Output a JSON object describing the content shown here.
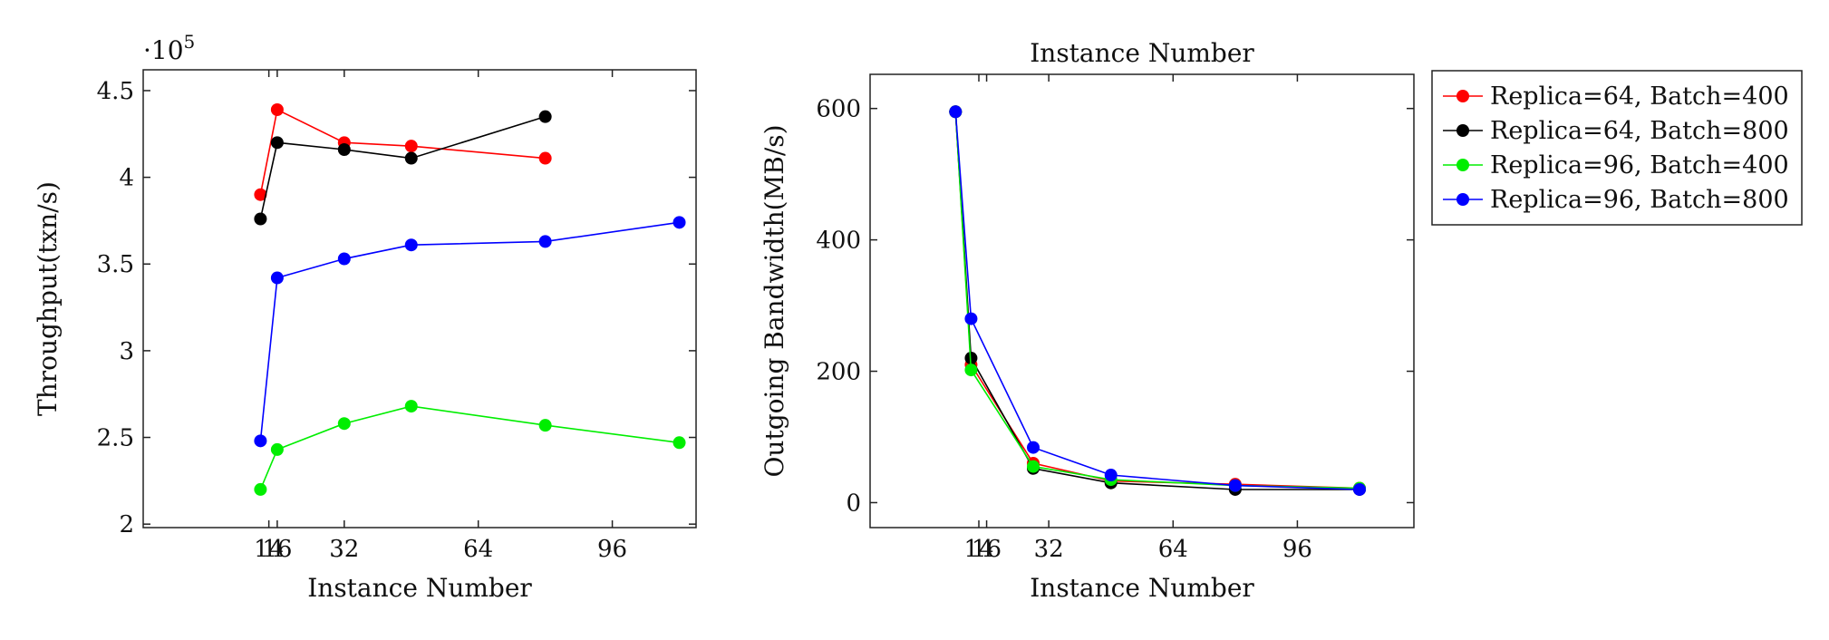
{
  "colors": {
    "r64b400": "#ff0000",
    "r64b800": "#000000",
    "r96b400": "#00ee00",
    "r96b800": "#0000ff"
  },
  "legend": {
    "placement": "outside-right",
    "entries": [
      {
        "label": "Replica=64, Batch=400",
        "color": "#ff0000"
      },
      {
        "label": "Replica=64, Batch=800",
        "color": "#000000"
      },
      {
        "label": "Replica=96, Batch=400",
        "color": "#00ee00"
      },
      {
        "label": "Replica=96, Batch=800",
        "color": "#0000ff"
      }
    ]
  },
  "chart_data": [
    {
      "type": "line",
      "title": "",
      "xlabel": "Instance Number",
      "ylabel": "Throughput(txn/s)",
      "y_multiplier": "·10",
      "y_multiplier_exp": "5",
      "x_ticks": [
        14,
        16,
        32,
        64,
        96
      ],
      "x_tick_labels": [
        "14",
        "16",
        "32",
        "64",
        "96"
      ],
      "y_ticks": [
        2,
        2.5,
        3,
        3.5,
        4,
        4.5
      ],
      "y_tick_labels": [
        "2",
        "2.5",
        "3",
        "3.5",
        "4",
        "4.5"
      ],
      "xlim": [
        -16,
        116
      ],
      "ylim": [
        1.98,
        4.62
      ],
      "grid": false,
      "series": [
        {
          "name": "Replica=64, Batch=400",
          "color": "#ff0000",
          "x": [
            12,
            16,
            32,
            48,
            80
          ],
          "y": [
            3.9,
            4.39,
            4.2,
            4.18,
            4.11
          ]
        },
        {
          "name": "Replica=64, Batch=800",
          "color": "#000000",
          "x": [
            12,
            16,
            32,
            48,
            80
          ],
          "y": [
            3.76,
            4.2,
            4.16,
            4.11,
            4.35
          ]
        },
        {
          "name": "Replica=96, Batch=400",
          "color": "#00ee00",
          "x": [
            12,
            16,
            32,
            48,
            80,
            112
          ],
          "y": [
            2.2,
            2.43,
            2.58,
            2.68,
            2.57,
            2.47
          ]
        },
        {
          "name": "Replica=96, Batch=800",
          "color": "#0000ff",
          "x": [
            12,
            16,
            32,
            48,
            80,
            112
          ],
          "y": [
            2.48,
            3.42,
            3.53,
            3.61,
            3.63,
            3.74
          ]
        }
      ]
    },
    {
      "type": "line",
      "title": "Instance Number",
      "xlabel": "Instance Number",
      "ylabel": "Outgoing Bandwidth(MB/s)",
      "x_ticks": [
        14,
        16,
        32,
        64,
        96
      ],
      "x_tick_labels": [
        "14",
        "16",
        "32",
        "64",
        "96"
      ],
      "y_ticks": [
        0,
        200,
        400,
        600
      ],
      "y_tick_labels": [
        "0",
        "200",
        "400",
        "600"
      ],
      "xlim": [
        -14,
        126
      ],
      "ylim": [
        -38,
        652
      ],
      "grid": false,
      "series": [
        {
          "name": "Replica=64, Batch=400",
          "color": "#ff0000",
          "x": [
            8,
            12,
            28,
            48,
            80,
            112
          ],
          "y": [
            595,
            210,
            60,
            33,
            28,
            22
          ]
        },
        {
          "name": "Replica=64, Batch=800",
          "color": "#000000",
          "x": [
            8,
            12,
            28,
            48,
            80,
            112
          ],
          "y": [
            595,
            220,
            52,
            30,
            20,
            20
          ]
        },
        {
          "name": "Replica=96, Batch=400",
          "color": "#00ee00",
          "x": [
            8,
            12,
            28,
            48,
            80,
            112
          ],
          "y": [
            595,
            202,
            55,
            35,
            26,
            22
          ]
        },
        {
          "name": "Replica=96, Batch=800",
          "color": "#0000ff",
          "x": [
            8,
            12,
            28,
            48,
            80,
            112
          ],
          "y": [
            595,
            280,
            84,
            42,
            26,
            20
          ]
        }
      ]
    }
  ]
}
